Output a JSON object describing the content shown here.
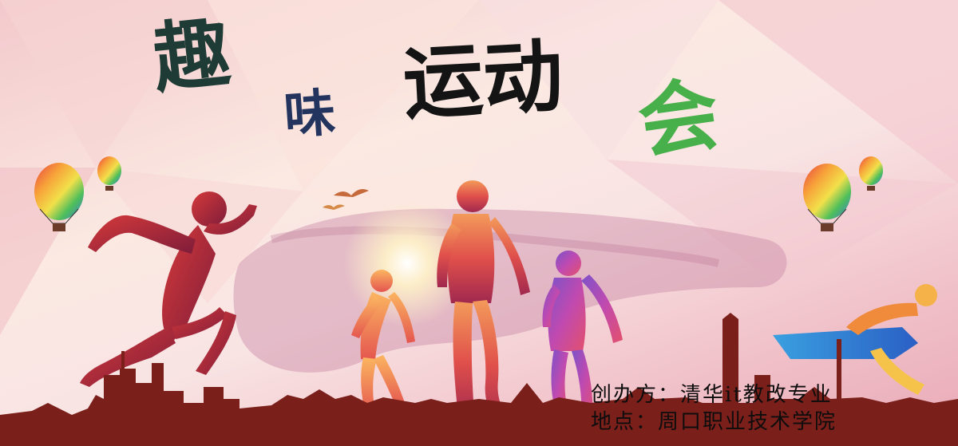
{
  "poster": {
    "title_chars": [
      "趣",
      "味",
      "运动",
      "会"
    ],
    "organizer_line": "创办方：清华it教改专业",
    "location_line": "地点：周口职业技术学院"
  },
  "colors": {
    "background_light": "#fbe9e2",
    "background_pink": "#f0c0c8",
    "title_qu": "#1f3b35",
    "title_wei": "#23345f",
    "title_yundong": "#141414",
    "title_hui": "#48b04a",
    "skyline": "#7a1f1a"
  },
  "icons": [
    "hot-air-balloon-icon",
    "runner-silhouette-icon",
    "bird-icon",
    "city-skyline-icon",
    "sun-glow-icon"
  ]
}
